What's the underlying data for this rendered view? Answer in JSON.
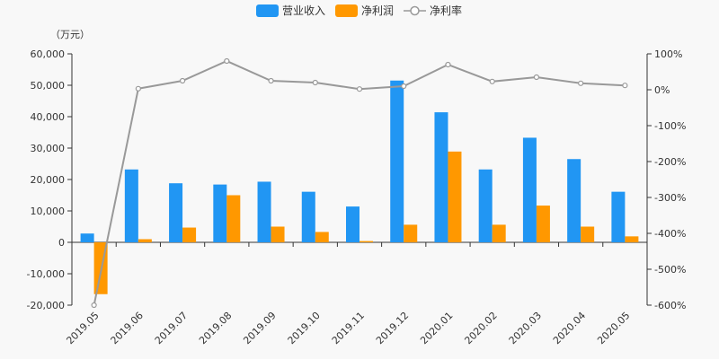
{
  "colors": {
    "revenue": "#2196f3",
    "profit": "#ff9800",
    "margin": "#999999",
    "axis": "#333333",
    "background": "#f8f8f8"
  },
  "chart_data": {
    "type": "bar",
    "unit_label": "（万元）",
    "categories": [
      "2019.05",
      "2019.06",
      "2019.07",
      "2019.08",
      "2019.09",
      "2019.10",
      "2019.11",
      "2019.12",
      "2020.01",
      "2020.02",
      "2020.03",
      "2020.04",
      "2020.05"
    ],
    "series": [
      {
        "name": "营业收入",
        "type": "bar",
        "axis": "left",
        "values": [
          2800,
          23200,
          18800,
          18400,
          19300,
          16100,
          11400,
          51500,
          41400,
          23200,
          33300,
          26500,
          16100
        ]
      },
      {
        "name": "净利润",
        "type": "bar",
        "axis": "left",
        "values": [
          -16500,
          1000,
          4700,
          15000,
          5000,
          3300,
          400,
          5600,
          28900,
          5600,
          11700,
          5000,
          1900
        ]
      },
      {
        "name": "净利率",
        "type": "line",
        "axis": "right",
        "values": [
          -600,
          3,
          25,
          80,
          25,
          20,
          2,
          10,
          70,
          23,
          35,
          18,
          12
        ]
      }
    ],
    "ylim_left": [
      -20000,
      60000
    ],
    "yticks_left": [
      "-20,000",
      "-10,000",
      "0",
      "10,000",
      "20,000",
      "30,000",
      "40,000",
      "50,000",
      "60,000"
    ],
    "ylim_right": [
      -600,
      100
    ],
    "yticks_right": [
      "-600%",
      "-500%",
      "-400%",
      "-300%",
      "-200%",
      "-100%",
      "0%",
      "100%"
    ],
    "legend_position": "top-center",
    "grid": false
  }
}
